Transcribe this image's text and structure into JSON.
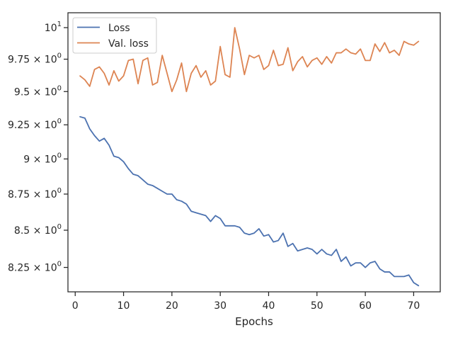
{
  "chart_data": {
    "type": "line",
    "title": "",
    "xlabel": "Epochs",
    "ylabel": "",
    "y_scale": "log",
    "xlim": [
      -1.5,
      75.5
    ],
    "ylim": [
      8.09,
      10.12
    ],
    "grid": false,
    "legend_position": "upper-left",
    "x_ticks": [
      0,
      10,
      20,
      30,
      40,
      50,
      60,
      70
    ],
    "x_tick_labels": [
      "0",
      "10",
      "20",
      "30",
      "40",
      "50",
      "60",
      "70"
    ],
    "y_ticks": [
      8.25,
      8.5,
      8.75,
      9.0,
      9.25,
      9.5,
      9.75,
      10.0
    ],
    "y_tick_labels": [
      {
        "mantissa": "8.25",
        "sep": " × ",
        "base": "10",
        "exp": "0"
      },
      {
        "mantissa": "8.5",
        "sep": " × ",
        "base": "10",
        "exp": "0"
      },
      {
        "mantissa": "8.75",
        "sep": " × ",
        "base": "10",
        "exp": "0"
      },
      {
        "mantissa": "9",
        "sep": " × ",
        "base": "10",
        "exp": "0"
      },
      {
        "mantissa": "9.25",
        "sep": " × ",
        "base": "10",
        "exp": "0"
      },
      {
        "mantissa": "9.5",
        "sep": " × ",
        "base": "10",
        "exp": "0"
      },
      {
        "mantissa": "9.75",
        "sep": " × ",
        "base": "10",
        "exp": "0"
      },
      {
        "mantissa": "",
        "sep": "",
        "base": "10",
        "exp": "1"
      }
    ],
    "x": [
      1,
      2,
      3,
      4,
      5,
      6,
      7,
      8,
      9,
      10,
      11,
      12,
      13,
      14,
      15,
      16,
      17,
      18,
      19,
      20,
      21,
      22,
      23,
      24,
      25,
      26,
      27,
      28,
      29,
      30,
      31,
      32,
      33,
      34,
      35,
      36,
      37,
      38,
      39,
      40,
      41,
      42,
      43,
      44,
      45,
      46,
      47,
      48,
      49,
      50,
      51,
      52,
      53,
      54,
      55,
      56,
      57,
      58,
      59,
      60,
      61,
      62,
      63,
      64,
      65,
      66,
      67,
      68,
      69,
      70,
      71
    ],
    "series": [
      {
        "name": "Loss",
        "color": "#4c72b0",
        "values": [
          9.31,
          9.3,
          9.22,
          9.17,
          9.13,
          9.15,
          9.1,
          9.02,
          9.01,
          8.98,
          8.93,
          8.89,
          8.88,
          8.85,
          8.82,
          8.81,
          8.79,
          8.77,
          8.75,
          8.75,
          8.71,
          8.7,
          8.68,
          8.63,
          8.62,
          8.61,
          8.6,
          8.56,
          8.6,
          8.58,
          8.53,
          8.53,
          8.53,
          8.52,
          8.48,
          8.47,
          8.48,
          8.51,
          8.46,
          8.47,
          8.42,
          8.43,
          8.48,
          8.39,
          8.41,
          8.36,
          8.37,
          8.38,
          8.37,
          8.34,
          8.37,
          8.34,
          8.33,
          8.37,
          8.29,
          8.32,
          8.26,
          8.28,
          8.28,
          8.25,
          8.28,
          8.29,
          8.24,
          8.22,
          8.22,
          8.19,
          8.19,
          8.19,
          8.2,
          8.15,
          8.13
        ]
      },
      {
        "name": "Val. loss",
        "color": "#dd8452",
        "values": [
          9.62,
          9.59,
          9.54,
          9.67,
          9.69,
          9.64,
          9.55,
          9.66,
          9.58,
          9.62,
          9.74,
          9.75,
          9.56,
          9.74,
          9.76,
          9.55,
          9.57,
          9.78,
          9.64,
          9.5,
          9.59,
          9.72,
          9.5,
          9.64,
          9.7,
          9.61,
          9.66,
          9.55,
          9.58,
          9.85,
          9.63,
          9.61,
          10.0,
          9.83,
          9.63,
          9.78,
          9.76,
          9.78,
          9.67,
          9.7,
          9.82,
          9.7,
          9.71,
          9.84,
          9.66,
          9.73,
          9.77,
          9.69,
          9.74,
          9.76,
          9.71,
          9.77,
          9.72,
          9.8,
          9.8,
          9.83,
          9.8,
          9.79,
          9.83,
          9.74,
          9.74,
          9.87,
          9.81,
          9.88,
          9.8,
          9.82,
          9.78,
          9.89,
          9.87,
          9.86,
          9.89
        ]
      }
    ]
  }
}
